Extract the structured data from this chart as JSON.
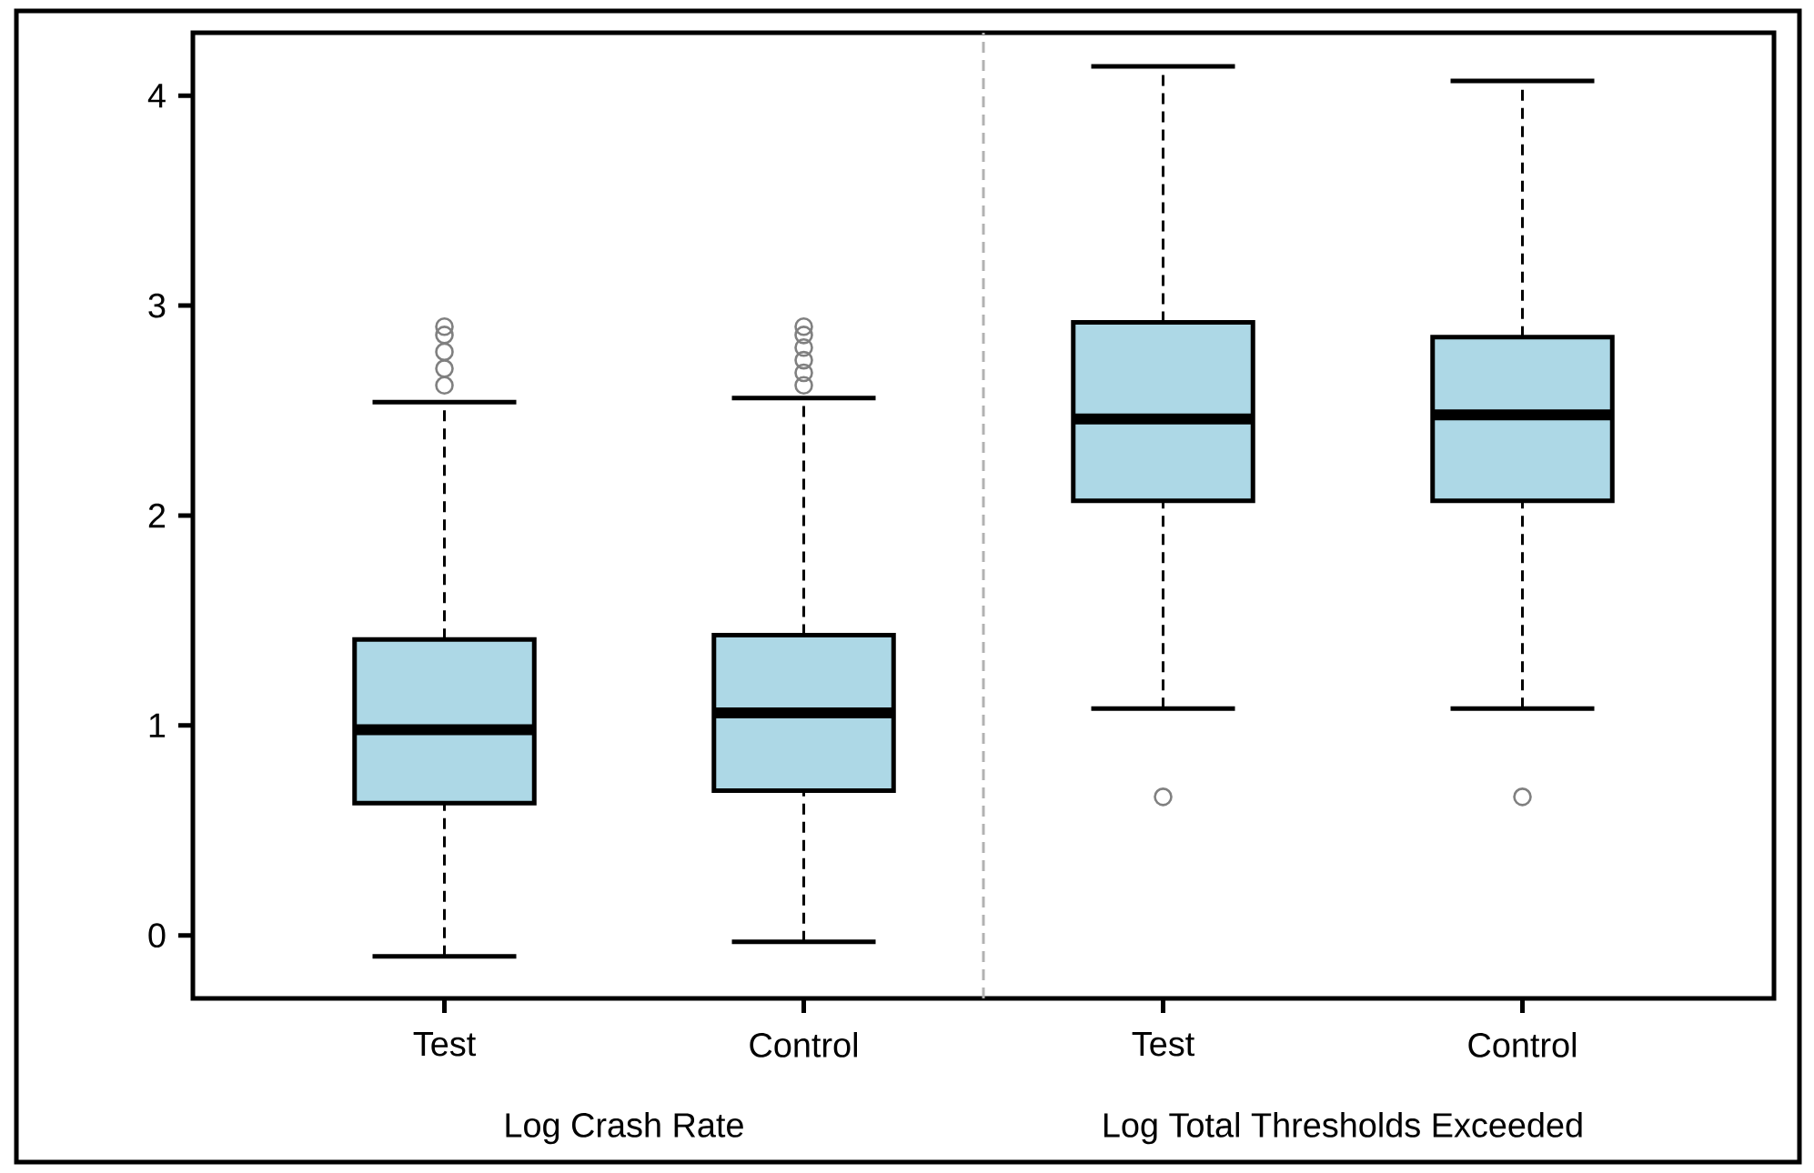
{
  "chart_data": {
    "type": "box",
    "categories": [
      "Test",
      "Control",
      "Test",
      "Control"
    ],
    "series": [
      {
        "color": "#add8e6",
        "boxes": [
          {
            "low": -0.1,
            "q1": 0.63,
            "median": 0.98,
            "q3": 1.41,
            "high": 2.54,
            "outliers": [
              2.62,
              2.7,
              2.78,
              2.86,
              2.9
            ]
          },
          {
            "low": -0.03,
            "q1": 0.69,
            "median": 1.06,
            "q3": 1.43,
            "high": 2.56,
            "outliers": [
              2.62,
              2.68,
              2.74,
              2.8,
              2.86,
              2.9
            ]
          },
          {
            "low": 1.08,
            "q1": 2.07,
            "median": 2.46,
            "q3": 2.92,
            "high": 4.14,
            "outliers": [
              0.66
            ]
          },
          {
            "low": 1.08,
            "q1": 2.07,
            "median": 2.48,
            "q3": 2.85,
            "high": 4.07,
            "outliers": [
              0.66
            ]
          }
        ]
      }
    ],
    "ylim": [
      -0.3,
      4.3
    ],
    "yticks": [
      0,
      1,
      2,
      3,
      4
    ],
    "annotations": [
      "Log Crash Rate",
      "Log Total Thresholds Exceeded"
    ],
    "grid": false
  }
}
